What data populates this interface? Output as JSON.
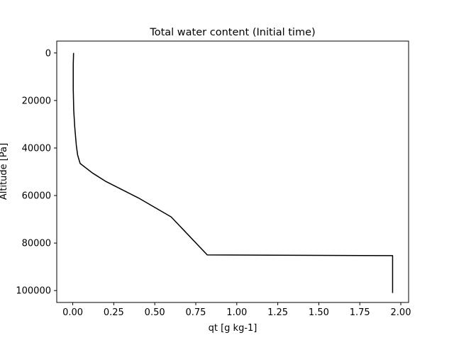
{
  "chart_data": {
    "type": "line",
    "title": "Total water content (Initial time)",
    "xlabel": "qt [g kg-1]",
    "ylabel": "Altitude [Pa]",
    "xlim": [
      -0.0975,
      2.0475
    ],
    "ylim": [
      105000,
      -5000
    ],
    "y_inverted": true,
    "grid": false,
    "xticks": [
      0.0,
      0.25,
      0.5,
      0.75,
      1.0,
      1.25,
      1.5,
      1.75,
      2.0
    ],
    "xtick_labels": [
      "0.00",
      "0.25",
      "0.50",
      "0.75",
      "1.00",
      "1.25",
      "1.50",
      "1.75",
      "2.00"
    ],
    "yticks": [
      0,
      20000,
      40000,
      60000,
      80000,
      100000
    ],
    "ytick_labels": [
      "0",
      "20000",
      "40000",
      "60000",
      "80000",
      "100000"
    ],
    "series": [
      {
        "color": "#000000",
        "x": [
          0.005,
          0.003,
          0.003,
          0.006,
          0.012,
          0.022,
          0.03,
          0.045,
          0.12,
          0.2,
          0.4,
          0.6,
          0.82,
          1.95,
          1.95
        ],
        "y": [
          0,
          5000,
          15000,
          24000,
          31000,
          39000,
          43000,
          46500,
          50500,
          54000,
          61000,
          69000,
          85000,
          85300,
          101000
        ]
      }
    ]
  }
}
